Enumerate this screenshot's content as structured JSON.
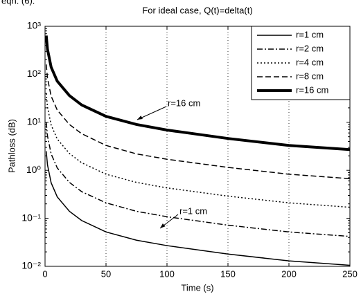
{
  "page_text": "eqn. (6).",
  "chart_data": {
    "type": "line",
    "title": "For ideal case, Q(t)=delta(t)",
    "x_label": "Time (s)",
    "y_label": "Pathloss (dB)",
    "x": [
      1,
      2,
      5,
      10,
      20,
      30,
      50,
      75,
      100,
      150,
      200,
      250
    ],
    "series": [
      {
        "name": "r=1 cm",
        "color": "#000000",
        "style": "solid",
        "width": 1.5,
        "values": [
          2.5,
          1.3,
          0.55,
          0.28,
          0.14,
          0.09,
          0.052,
          0.035,
          0.027,
          0.018,
          0.013,
          0.0105
        ]
      },
      {
        "name": "r=2 cm",
        "color": "#000000",
        "style": "dashdot",
        "width": 1.5,
        "values": [
          10,
          5.2,
          2.2,
          1.12,
          0.56,
          0.36,
          0.21,
          0.14,
          0.108,
          0.072,
          0.052,
          0.042
        ]
      },
      {
        "name": "r=4 cm",
        "color": "#000000",
        "style": "dotted",
        "width": 1.5,
        "values": [
          40,
          20.8,
          8.8,
          4.48,
          2.24,
          1.44,
          0.83,
          0.56,
          0.43,
          0.29,
          0.21,
          0.17
        ]
      },
      {
        "name": "r=8 cm",
        "color": "#000000",
        "style": "dashed",
        "width": 1.5,
        "values": [
          160,
          83,
          35,
          18,
          9,
          5.8,
          3.3,
          2.2,
          1.7,
          1.15,
          0.83,
          0.67
        ]
      },
      {
        "name": "r=16 cm",
        "color": "#000000",
        "style": "solid",
        "width": 4,
        "values": [
          640,
          333,
          141,
          72,
          36,
          23,
          13.3,
          9,
          6.9,
          4.6,
          3.3,
          2.7
        ]
      }
    ],
    "xlim": [
      0,
      250
    ],
    "xticks": [
      0,
      50,
      100,
      150,
      200,
      250
    ],
    "ylim": [
      0.01,
      1000
    ],
    "yscale": "log",
    "yticks": [
      {
        "value": 0.01,
        "label": "10⁻²"
      },
      {
        "value": 0.1,
        "label": "10⁻¹"
      },
      {
        "value": 1,
        "label": "10⁰"
      },
      {
        "value": 10,
        "label": "10¹"
      },
      {
        "value": 100,
        "label": "10²"
      },
      {
        "value": 1000,
        "label": "10³"
      }
    ],
    "grid_x": true,
    "legend": "upper right",
    "annotations": [
      "r=16 cm",
      "r=1 cm"
    ]
  }
}
